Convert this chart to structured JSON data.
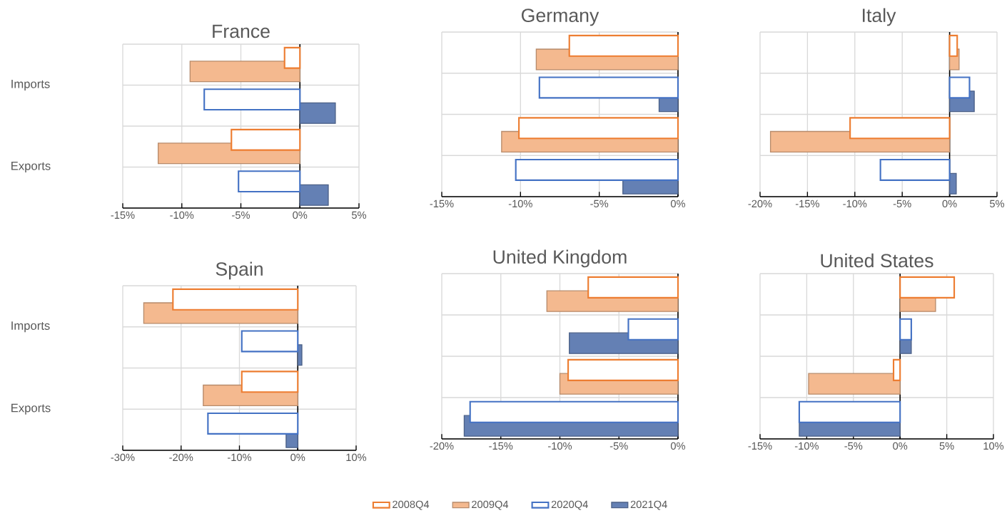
{
  "chart_data": [
    {
      "type": "bar",
      "orientation": "horizontal",
      "title": "France",
      "categories": [
        "Imports",
        "Exports"
      ],
      "xlim": [
        -15,
        5
      ],
      "xticks": [
        {
          "value": -15,
          "label": "-15%"
        },
        {
          "value": -10,
          "label": "-10%"
        },
        {
          "value": -5,
          "label": "-5%"
        },
        {
          "value": 0,
          "label": "0%"
        },
        {
          "value": 5,
          "label": "5%"
        }
      ],
      "grid": true,
      "series": [
        {
          "color": "#ed7d31",
          "values": [
            -1.3,
            -5.8
          ]
        },
        {
          "color": "#f4b98f",
          "values": [
            -9.3,
            -12.0
          ]
        },
        {
          "color": "#4472c4",
          "values": [
            -8.1,
            -5.2
          ]
        },
        {
          "color": "#6480b4",
          "values": [
            3.0,
            2.4
          ]
        }
      ]
    },
    {
      "type": "bar",
      "orientation": "horizontal",
      "title": "Germany",
      "categories": [
        null,
        null
      ],
      "xlim": [
        -15,
        0
      ],
      "xticks": [
        {
          "value": -15,
          "label": "-15%"
        },
        {
          "value": -10,
          "label": "-10%"
        },
        {
          "value": -5,
          "label": "-5%"
        },
        {
          "value": 0,
          "label": "0%"
        }
      ],
      "grid": true,
      "series": [
        {
          "color": "#ed7d31",
          "values": [
            -6.9,
            -10.1
          ]
        },
        {
          "color": "#f4b98f",
          "values": [
            -9.0,
            -11.2
          ]
        },
        {
          "color": "#4472c4",
          "values": [
            -8.8,
            -10.3
          ]
        },
        {
          "color": "#6480b4",
          "values": [
            -1.2,
            -3.5
          ]
        }
      ]
    },
    {
      "type": "bar",
      "orientation": "horizontal",
      "title": "Italy",
      "categories": [
        null,
        null
      ],
      "xlim": [
        -20,
        5
      ],
      "xticks": [
        {
          "value": -20,
          "label": "-20%"
        },
        {
          "value": -15,
          "label": "-15%"
        },
        {
          "value": -10,
          "label": "-10%"
        },
        {
          "value": -5,
          "label": "-5%"
        },
        {
          "value": 0,
          "label": "0%"
        },
        {
          "value": 5,
          "label": "5%"
        }
      ],
      "grid": true,
      "series": [
        {
          "color": "#ed7d31",
          "values": [
            0.8,
            -10.5
          ]
        },
        {
          "color": "#f4b98f",
          "values": [
            1.0,
            -18.9
          ]
        },
        {
          "color": "#4472c4",
          "values": [
            2.1,
            -7.3
          ]
        },
        {
          "color": "#6480b4",
          "values": [
            2.6,
            0.7
          ]
        }
      ]
    },
    {
      "type": "bar",
      "orientation": "horizontal",
      "title": "Spain",
      "categories": [
        "Imports",
        "Exports"
      ],
      "xlim": [
        -30,
        10
      ],
      "xticks": [
        {
          "value": -30,
          "label": "-30%"
        },
        {
          "value": -20,
          "label": "-20%"
        },
        {
          "value": -10,
          "label": "-10%"
        },
        {
          "value": 0,
          "label": "0%"
        },
        {
          "value": 10,
          "label": "10%"
        }
      ],
      "grid": true,
      "series": [
        {
          "color": "#ed7d31",
          "values": [
            -21.4,
            -9.6
          ]
        },
        {
          "color": "#f4b98f",
          "values": [
            -26.4,
            -16.2
          ]
        },
        {
          "color": "#4472c4",
          "values": [
            -9.6,
            -15.4
          ]
        },
        {
          "color": "#6480b4",
          "values": [
            0.7,
            -2.0
          ]
        }
      ]
    },
    {
      "type": "bar",
      "orientation": "horizontal",
      "title": "United Kingdom",
      "categories": [
        null,
        null
      ],
      "xlim": [
        -20,
        0
      ],
      "xticks": [
        {
          "value": -20,
          "label": "-20%"
        },
        {
          "value": -15,
          "label": "-15%"
        },
        {
          "value": -10,
          "label": "-10%"
        },
        {
          "value": -5,
          "label": "-5%"
        },
        {
          "value": 0,
          "label": "0%"
        }
      ],
      "grid": true,
      "legend": "bottom",
      "series": [
        {
          "name": "2008Q4",
          "color": "#ed7d31",
          "values": [
            -7.6,
            -9.3
          ]
        },
        {
          "name": "2009Q4",
          "color": "#f4b98f",
          "values": [
            -11.1,
            -10.0
          ]
        },
        {
          "name": "2020Q4",
          "color": "#4472c4",
          "values": [
            -4.2,
            -17.6
          ]
        },
        {
          "name": "2021Q4",
          "color": "#6480b4",
          "values": [
            -9.2,
            -18.1
          ]
        }
      ]
    },
    {
      "type": "bar",
      "orientation": "horizontal",
      "title": "United States",
      "categories": [
        null,
        null
      ],
      "xlim": [
        -15,
        10
      ],
      "xticks": [
        {
          "value": -15,
          "label": "-15%"
        },
        {
          "value": -10,
          "label": "-10%"
        },
        {
          "value": -5,
          "label": "-5%"
        },
        {
          "value": 0,
          "label": "0%"
        },
        {
          "value": 5,
          "label": "5%"
        },
        {
          "value": 10,
          "label": "10%"
        }
      ],
      "grid": true,
      "series": [
        {
          "color": "#ed7d31",
          "values": [
            5.8,
            -0.7
          ]
        },
        {
          "color": "#f4b98f",
          "values": [
            3.8,
            -9.8
          ]
        },
        {
          "color": "#4472c4",
          "values": [
            1.2,
            -10.8
          ]
        },
        {
          "color": "#6480b4",
          "values": [
            1.2,
            -10.8
          ]
        }
      ]
    }
  ]
}
